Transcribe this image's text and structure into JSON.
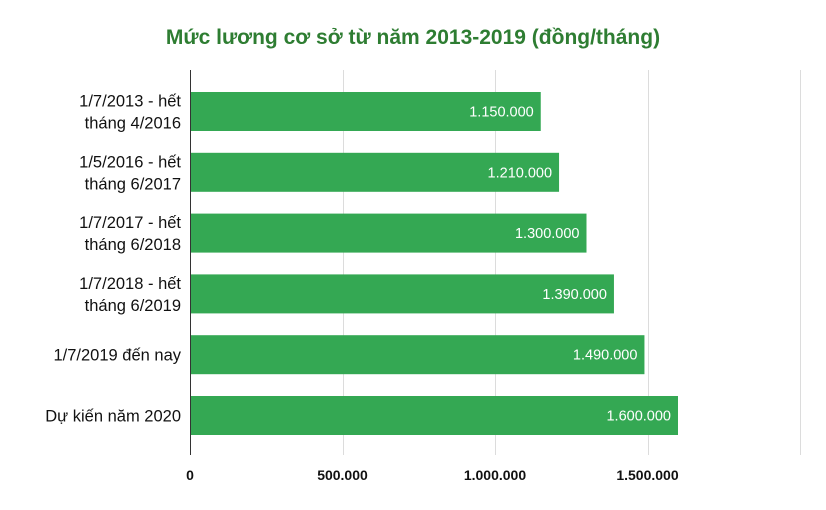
{
  "chart_data": {
    "type": "bar",
    "orientation": "horizontal",
    "title": "Mức lương cơ sở từ năm 2013-2019 (đồng/tháng)",
    "categories": [
      [
        "1/7/2013 - hết",
        "tháng 4/2016"
      ],
      [
        "1/5/2016 - hết",
        "tháng 6/2017"
      ],
      [
        "1/7/2017 - hết",
        "tháng 6/2018"
      ],
      [
        "1/7/2018 - hết",
        "tháng 6/2019"
      ],
      [
        "1/7/2019 đến nay"
      ],
      [
        "Dự kiến năm 2020"
      ]
    ],
    "values": [
      1150000,
      1210000,
      1300000,
      1390000,
      1490000,
      1600000
    ],
    "value_labels": [
      "1.150.000",
      "1.210.000",
      "1.300.000",
      "1.390.000",
      "1.490.000",
      "1.600.000"
    ],
    "xlim": [
      0,
      2000000
    ],
    "xticks": [
      0,
      500000,
      1000000,
      1500000,
      2000000
    ],
    "xtick_labels": [
      "0",
      "500.000",
      "1.000.000",
      "1.500.000",
      ""
    ],
    "grid": true,
    "colors": {
      "bar": "#34a853",
      "title": "#2e7d32",
      "value_label": "#ffffff"
    }
  }
}
